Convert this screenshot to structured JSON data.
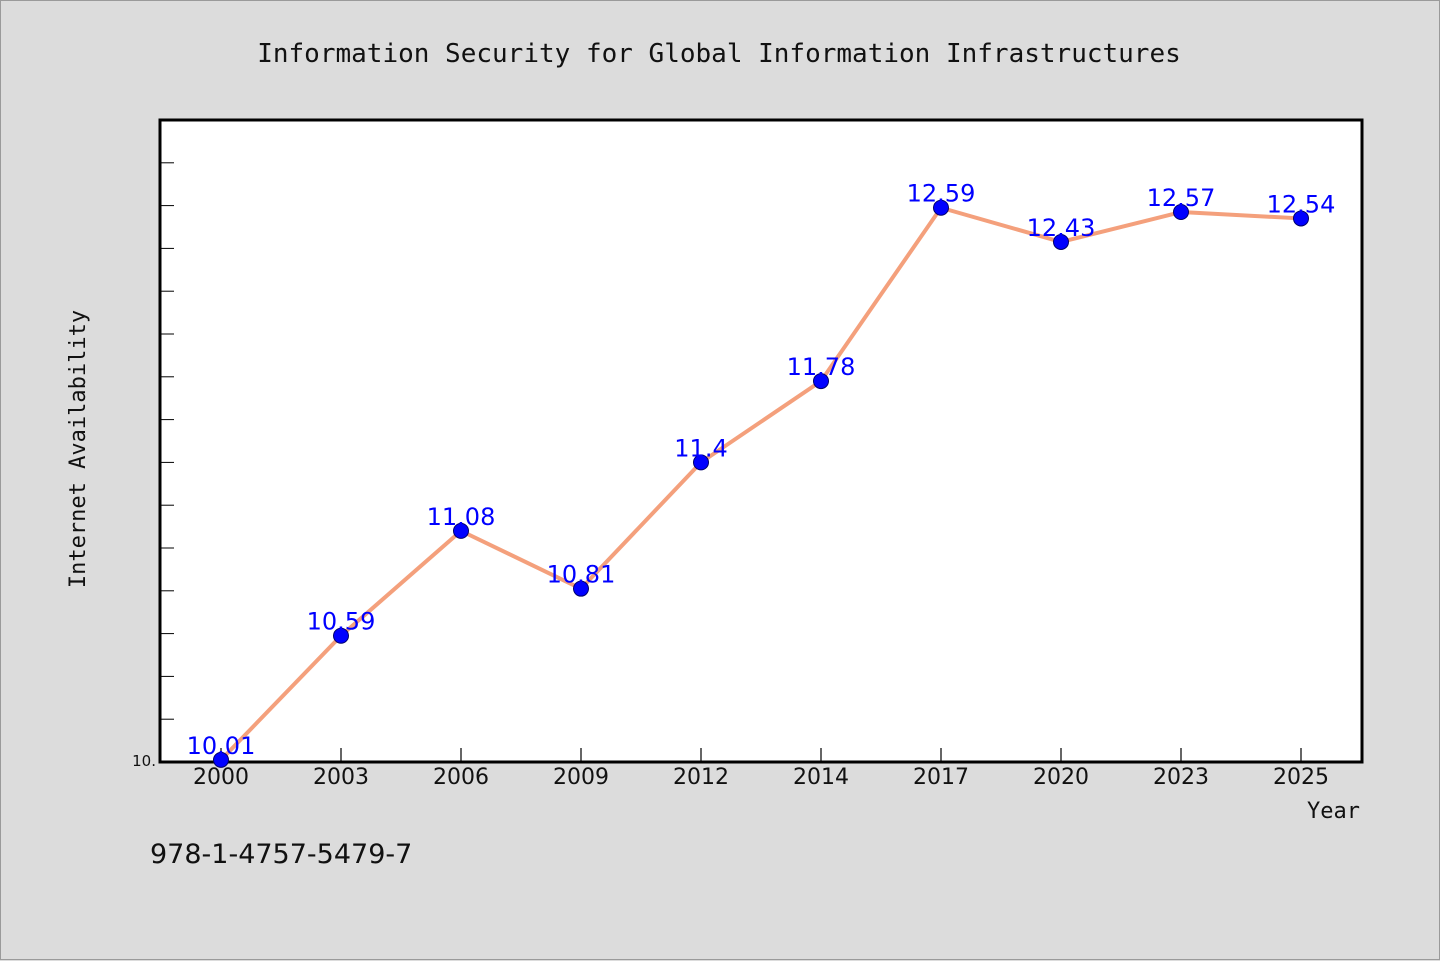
{
  "chart_data": {
    "type": "line",
    "title": "Information Security for Global Information Infrastructures",
    "xlabel": "Year",
    "ylabel": "Internet Availability",
    "categories": [
      "2000",
      "2003",
      "2006",
      "2009",
      "2012",
      "2014",
      "2017",
      "2020",
      "2023",
      "2025"
    ],
    "series": [
      {
        "values": [
          10.01,
          10.59,
          11.08,
          10.81,
          11.4,
          11.78,
          12.59,
          12.43,
          12.57,
          12.54
        ]
      }
    ],
    "data_labels": [
      "10.01",
      "10.59",
      "11.08",
      "10.81",
      "11.4",
      "11.78",
      "12.59",
      "12.43",
      "12.57",
      "12.54"
    ],
    "ylim": [
      10.0,
      13.0
    ],
    "y_tick_labels": [
      "10."
    ],
    "y_minor_tick_step": 0.2,
    "grid": false,
    "legend": "none",
    "colors": {
      "line": "#f4a07c",
      "marker": "#0000ff",
      "marker_edge": "#00006b",
      "data_label": "#0000ff",
      "plot_background": "#ffffff",
      "figure_background": "#dcdcdc"
    }
  },
  "footer": {
    "isbn": "978-1-4757-5479-7"
  }
}
